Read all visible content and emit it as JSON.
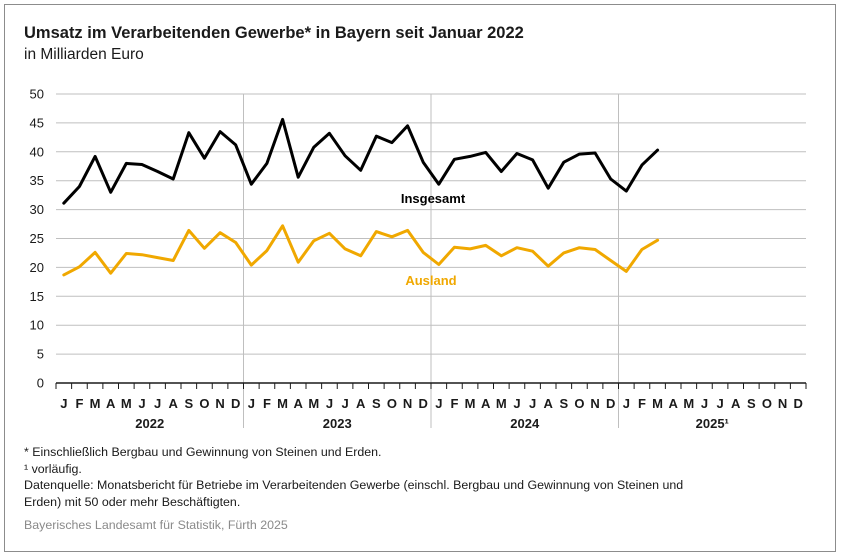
{
  "title": "Umsatz im Verarbeitenden Gewerbe* in Bayern seit Januar 2022",
  "subtitle": "in Milliarden Euro",
  "footnotes": {
    "asterisk": "* Einschließlich Bergbau und Gewinnung von Steinen und Erden.",
    "provisional": "¹  vorläufig.",
    "source_line1": "Datenquelle: Monatsbericht für Betriebe im Verarbeitenden Gewerbe (einschl. Bergbau und Gewinnung von Steinen und",
    "source_line2": "Erden) mit 50 oder mehr Beschäftigten."
  },
  "publisher": "Bayerisches Landesamt für Statistik, Fürth 2025",
  "colors": {
    "insgesamt": "#000000",
    "ausland": "#f0a800",
    "grid": "#bfbfbf",
    "axis": "#1a1a1a"
  },
  "chart_data": {
    "type": "line",
    "ylim": [
      0,
      50
    ],
    "yticks": [
      0,
      5,
      10,
      15,
      20,
      25,
      30,
      35,
      40,
      45,
      50
    ],
    "grid": true,
    "month_labels": [
      "J",
      "F",
      "M",
      "A",
      "M",
      "J",
      "J",
      "A",
      "S",
      "O",
      "N",
      "D"
    ],
    "years": [
      "2022",
      "2023",
      "2024",
      "2025¹"
    ],
    "series": [
      {
        "name": "Insgesamt",
        "color": "#000000",
        "values": [
          31.1,
          34.0,
          39.2,
          33.0,
          38.0,
          37.8,
          36.6,
          35.3,
          43.3,
          38.9,
          43.5,
          41.2,
          34.4,
          38.0,
          45.6,
          35.6,
          40.8,
          43.2,
          39.3,
          36.8,
          42.7,
          41.6,
          44.5,
          38.2,
          34.4,
          38.7,
          39.2,
          39.9,
          36.6,
          39.7,
          38.6,
          33.7,
          38.2,
          39.6,
          39.8,
          35.3,
          33.2,
          37.7,
          40.3
        ]
      },
      {
        "name": "Ausland",
        "color": "#f0a800",
        "values": [
          18.7,
          20.1,
          22.6,
          19.0,
          22.4,
          22.2,
          21.7,
          21.2,
          26.4,
          23.3,
          26.0,
          24.3,
          20.4,
          22.9,
          27.2,
          20.9,
          24.6,
          25.9,
          23.2,
          22.0,
          26.2,
          25.3,
          26.4,
          22.6,
          20.5,
          23.5,
          23.2,
          23.8,
          22.0,
          23.4,
          22.8,
          20.2,
          22.5,
          23.4,
          23.1,
          21.2,
          19.3,
          23.1,
          24.7
        ]
      }
    ]
  }
}
